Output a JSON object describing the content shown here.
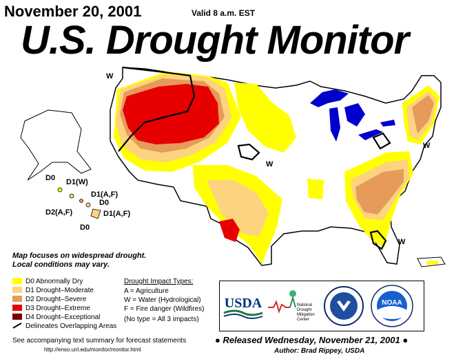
{
  "header": {
    "date": "November 20, 2001",
    "valid": "Valid 8 a.m. EST",
    "title": "U.S. Drought Monitor"
  },
  "notes": {
    "line1": "Map focuses on widespread drought.",
    "line2": "Local conditions may vary."
  },
  "legend": {
    "items": [
      {
        "label": "D0 Abnormally Dry",
        "color": "#ffff00"
      },
      {
        "label": "D1 Drought–Moderate",
        "color": "#fcd37f"
      },
      {
        "label": "D2 Drought–Severe",
        "color": "#e69b5a"
      },
      {
        "label": "D3 Drought–Extreme",
        "color": "#e60000"
      },
      {
        "label": "D4 Drought–Exceptional",
        "color": "#730000"
      }
    ],
    "boundary_label": "Delineates Overlapping Areas"
  },
  "impact": {
    "heading": "Drought Impact Types:",
    "items": [
      "A = Agriculture",
      "W = Water (Hydrological)",
      "F = Fire danger (Wildfires)",
      "(No type = All 3 impacts)"
    ]
  },
  "map_labels": {
    "w_northwest": "W",
    "w_plains": "W",
    "w_northeast": "W",
    "w_florida": "W",
    "hi_d0_top": "D0",
    "hi_d1w": "D1(W)",
    "hi_d1af_a": "D1(A,F)",
    "hi_d0_mid": "D0",
    "hi_d2af": "D2(A,F)",
    "hi_d1af_b": "D1(A,F)",
    "hi_d0_bottom": "D0"
  },
  "logos": {
    "usda": "USDA",
    "ndmc_line1": "National",
    "ndmc_line2": "Drought",
    "ndmc_line3": "Mitigation",
    "ndmc_line4": "Center",
    "noaa": "NOAA"
  },
  "footer": {
    "summary": "See accompanying text summary for forecast statements",
    "url": "http://enso.unl.edu/monitor/monitor.html",
    "released": "Released Wednesday, November 21, 2001",
    "author": "Author:  Brad Rippey, USDA"
  },
  "colors": {
    "water": "#0000cc",
    "d0": "#ffff00",
    "d1": "#fcd37f",
    "d2": "#e69b5a",
    "d3": "#e60000",
    "d4": "#730000"
  }
}
